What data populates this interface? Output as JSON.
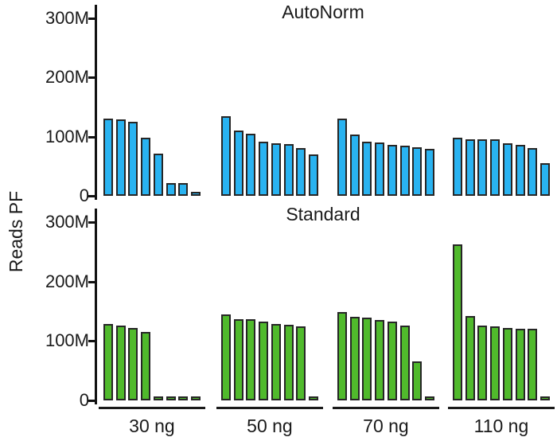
{
  "y_axis_label": "Reads PF",
  "x_axis": {
    "labels": [
      "30 ng",
      "50 ng",
      "70 ng",
      "110 ng"
    ]
  },
  "chart_data": [
    {
      "type": "bar",
      "panel": "top",
      "title": "AutoNorm",
      "bar_color": "#29B3F1",
      "bar_outline": "#262626",
      "ylabel": "Reads PF",
      "yticks": [
        "300M",
        "200M",
        "100M",
        "0"
      ],
      "ytick_values": [
        300,
        200,
        100,
        0
      ],
      "ylim": [
        0,
        310
      ],
      "value_unit": "M",
      "grid": false,
      "legend": false,
      "categories": [
        "30 ng",
        "50 ng",
        "70 ng",
        "110 ng"
      ],
      "series": [
        {
          "category": "30 ng",
          "values": [
            130,
            129,
            125,
            98,
            72,
            21,
            21,
            4
          ]
        },
        {
          "category": "50 ng",
          "values": [
            135,
            110,
            105,
            91,
            89,
            88,
            81,
            70
          ]
        },
        {
          "category": "70 ng",
          "values": [
            131,
            104,
            92,
            90,
            86,
            85,
            82,
            80
          ]
        },
        {
          "category": "110 ng",
          "values": [
            98,
            96,
            96,
            96,
            89,
            86,
            81,
            55
          ]
        }
      ]
    },
    {
      "type": "bar",
      "panel": "bottom",
      "title": "Standard",
      "bar_color": "#50BA2C",
      "bar_outline": "#262626",
      "ylabel": "Reads PF",
      "yticks": [
        "300M",
        "200M",
        "100M",
        "0"
      ],
      "ytick_values": [
        300,
        200,
        100,
        0
      ],
      "ylim": [
        0,
        310
      ],
      "value_unit": "M",
      "grid": false,
      "legend": false,
      "categories": [
        "30 ng",
        "50 ng",
        "70 ng",
        "110 ng"
      ],
      "series": [
        {
          "category": "30 ng",
          "values": [
            128,
            126,
            122,
            115,
            4,
            4,
            4,
            4
          ]
        },
        {
          "category": "50 ng",
          "values": [
            145,
            137,
            136,
            133,
            128,
            127,
            125,
            5
          ]
        },
        {
          "category": "70 ng",
          "values": [
            149,
            141,
            139,
            135,
            133,
            126,
            65,
            4
          ]
        },
        {
          "category": "110 ng",
          "values": [
            262,
            142,
            126,
            124,
            122,
            121,
            120,
            4
          ]
        }
      ]
    }
  ]
}
